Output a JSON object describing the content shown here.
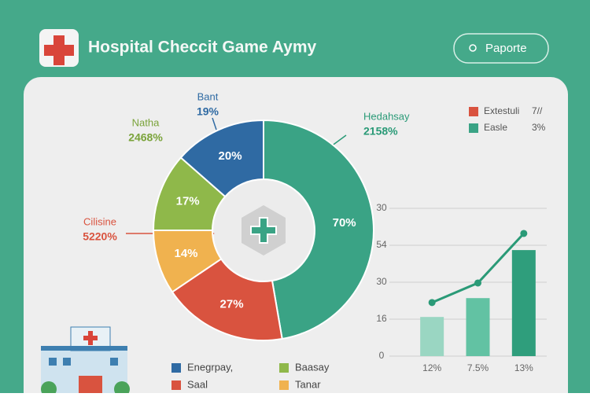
{
  "header": {
    "title": "Hospital Checcit Game Aymy",
    "button": "Paporte"
  },
  "annotations": [
    {
      "text": "Hedahsay",
      "value": "2158%"
    },
    {
      "text": "Natha",
      "value": "2468%"
    },
    {
      "text": "Bant",
      "value": "19%"
    },
    {
      "text": "Cilisine",
      "value": "5220%"
    }
  ],
  "legend_top": [
    {
      "name": "Extestuli",
      "note": "7//",
      "color": "#d9533f"
    },
    {
      "name": "Easle",
      "note": "3%",
      "color": "#3aa385"
    }
  ],
  "legend_bottom": [
    {
      "name": "Enegrpay,",
      "color": "#2f6aa3"
    },
    {
      "name": "Baasay",
      "color": "#8fb84a"
    },
    {
      "name": "Saal",
      "color": "#d9533f"
    },
    {
      "name": "Tanar",
      "color": "#f0b24f"
    }
  ],
  "chart_data": [
    {
      "type": "donut",
      "values": [
        70,
        27,
        14,
        17,
        20
      ],
      "value_labels": [
        "70%",
        "27%",
        "14%",
        "17%",
        "20%"
      ],
      "colors": [
        "#3aa385",
        "#d9533f",
        "#f0b24f",
        "#8fb84a",
        "#2f6aa3"
      ]
    },
    {
      "type": "bar-line",
      "categories": [
        "12%",
        "7.5%",
        "13%"
      ],
      "series": [
        {
          "type": "bar",
          "values": [
            10.6,
            15.7,
            28.7
          ],
          "colors": [
            "#9ad6c2",
            "#62c2a3",
            "#2f9e7c"
          ]
        },
        {
          "type": "line",
          "values": [
            14.5,
            19.8,
            33.2
          ],
          "color": "#2a9a77"
        }
      ],
      "ylim": [
        0,
        40
      ],
      "yticks": [
        0,
        {
          "value": 10,
          "label": "16"
        },
        {
          "value": 20,
          "label": "30"
        },
        {
          "value": 30,
          "label": "54"
        },
        {
          "value": 40,
          "label": "30"
        }
      ],
      "grid": true
    }
  ]
}
